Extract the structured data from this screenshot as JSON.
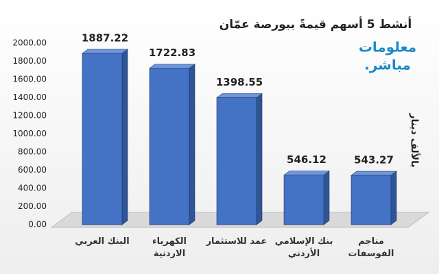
{
  "chart_data": {
    "type": "bar",
    "title": "أنشط 5 أسهم قيمةً ببورصة عمّان",
    "y_label": "بالألف دينار",
    "logo": [
      "معلومات",
      "مباشر."
    ],
    "categories": [
      "البنك العربي",
      "الكهرباء\nالاردنية",
      "عمد للاستثمار",
      "بنك الإسلامي\nالأردني",
      "مناجم\nالفوسفات"
    ],
    "values": [
      1887.22,
      1722.83,
      1398.55,
      546.12,
      543.27
    ],
    "color": "#4472c4",
    "ylim": [
      0,
      2000
    ],
    "yticks": [
      {
        "value": 0,
        "label": "0.00"
      },
      {
        "value": 200,
        "label": "200.00"
      },
      {
        "value": 400,
        "label": "400.00"
      },
      {
        "value": 600,
        "label": "600.00"
      },
      {
        "value": 800,
        "label": "800.00"
      },
      {
        "value": 1000,
        "label": "1000.00"
      },
      {
        "value": 1200,
        "label": "1200.00"
      },
      {
        "value": 1400,
        "label": "1400.00"
      },
      {
        "value": 1600,
        "label": "1600.00"
      },
      {
        "value": 1800,
        "label": "1800.00"
      },
      {
        "value": 2000,
        "label": "2000.00"
      }
    ],
    "grid": false
  }
}
